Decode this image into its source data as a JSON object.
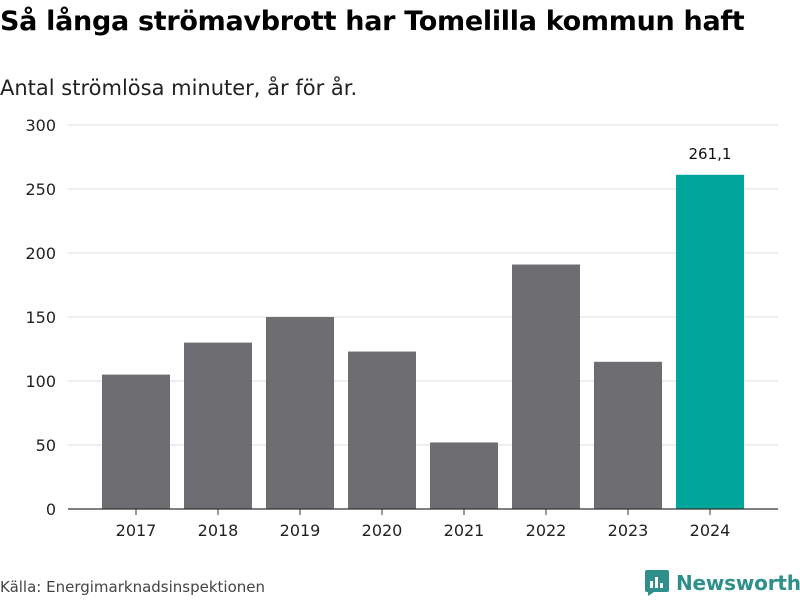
{
  "title": "Så långa strömavbrott har Tomelilla kommun haft",
  "subtitle": "Antal strömlösa minuter, år för år.",
  "source": "Källa: Energimarknadsinspektionen",
  "brand": {
    "name": "Newsworthy",
    "icon": "newsworthy-logo-icon"
  },
  "colors": {
    "bar": "#6e6d72",
    "highlight": "#00a59a",
    "grid": "#dddddd",
    "axis": "#333333"
  },
  "chart_data": {
    "type": "bar",
    "title": "Så långa strömavbrott har Tomelilla kommun haft",
    "subtitle": "Antal strömlösa minuter, år för år.",
    "xlabel": "",
    "ylabel": "",
    "categories": [
      "2017",
      "2018",
      "2019",
      "2020",
      "2021",
      "2022",
      "2023",
      "2024"
    ],
    "values": [
      105,
      130,
      150,
      123,
      52,
      191,
      115,
      261.1
    ],
    "highlight_index": 7,
    "annotations": [
      {
        "index": 7,
        "text": "261,1"
      }
    ],
    "yticks": [
      0,
      50,
      100,
      150,
      200,
      250,
      300
    ],
    "ylim": [
      0,
      300
    ],
    "grid": true
  }
}
